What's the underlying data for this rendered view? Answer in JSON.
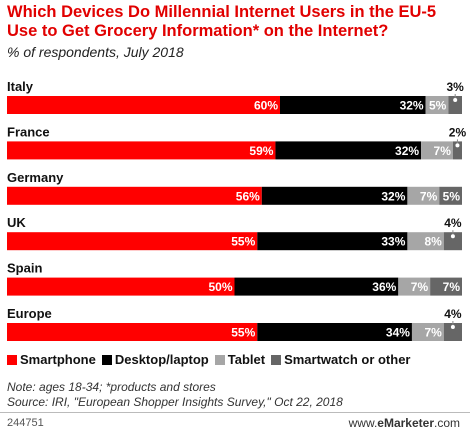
{
  "header": {
    "title": "Which Devices Do Millennial Internet Users in the EU-5 Use to Get Grocery Information* on the Internet?",
    "subtitle": "% of respondents, July 2018"
  },
  "colors": {
    "title": "#e10000",
    "smartphone": "#ff0000",
    "desktop": "#000000",
    "tablet": "#a6a6a6",
    "smartwatch": "#666666"
  },
  "chart_data": {
    "type": "bar",
    "orientation": "horizontal",
    "stacked": true,
    "unit": "%",
    "categories": [
      "Italy",
      "France",
      "Germany",
      "UK",
      "Spain",
      "Europe"
    ],
    "series": [
      {
        "name": "Smartphone",
        "values": [
          60,
          59,
          56,
          55,
          50,
          55
        ]
      },
      {
        "name": "Desktop/laptop",
        "values": [
          32,
          32,
          32,
          33,
          36,
          34
        ]
      },
      {
        "name": "Tablet",
        "values": [
          5,
          7,
          7,
          8,
          7,
          7
        ]
      },
      {
        "name": "Smartwatch or other",
        "values": [
          3,
          2,
          5,
          4,
          7,
          4
        ]
      }
    ],
    "xlim": [
      0,
      100
    ],
    "legend_position": "bottom"
  },
  "legend": {
    "smartphone": "Smartphone",
    "desktop": "Desktop/laptop",
    "tablet": "Tablet",
    "smartwatch": "Smartwatch or other"
  },
  "footer": {
    "note": "Note: ages 18-34; *products and stores",
    "source": "Source: IRI, \"European Shopper Insights Survey,\" Oct 22, 2018",
    "chart_id": "244751",
    "brand_www": "www.",
    "brand_name": "eMarketer",
    "brand_domain": ".com"
  }
}
